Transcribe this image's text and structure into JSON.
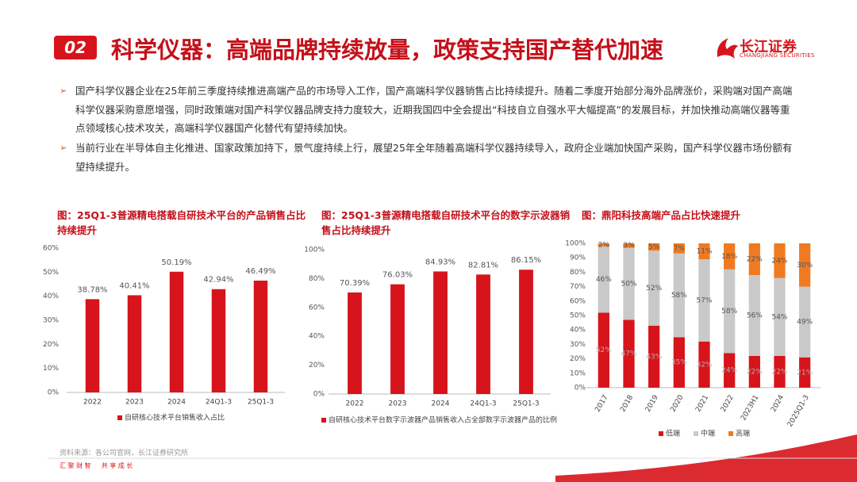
{
  "header": {
    "badge": "02",
    "title": "科学仪器：高端品牌持续放量，政策支持国产替代加速",
    "logo": "长江证券",
    "logo_en": "CHANGJIANG SECURITIES"
  },
  "bullets": [
    "国产科学仪器企业在25年前三季度持续推进高端产品的市场导入工作，国产高端科学仪器销售占比持续提升。随着二季度开始部分海外品牌涨价，采购端对国产高端科学仪器采购意愿增强，同时政策端对国产科学仪器品牌支持力度较大，近期我国四中全会提出“科技自立自强水平大幅提高”的发展目标，并加快推动高端仪器等重点领域核心技术攻关，高端科学仪器国产化替代有望持续加快。",
    "当前行业在半导体自主化推进、国家政策加持下，景气度持续上行，展望25年全年随着高端科学仪器持续导入，政府企业端加快国产采购，国产科学仪器市场份额有望持续提升。"
  ],
  "chart_data": [
    {
      "type": "bar",
      "title": "图：25Q1-3普源精电搭载自研技术平台的产品销售占比持续提升",
      "categories": [
        "2022",
        "2023",
        "2024",
        "24Q1-3",
        "25Q1-3"
      ],
      "series": [
        {
          "name": "自研核心技术平台销售收入占比",
          "color": "#d7141b",
          "values": [
            38.78,
            40.41,
            50.19,
            42.94,
            46.49
          ],
          "value_labels": [
            "38.78%",
            "40.41%",
            "50.19%",
            "42.94%",
            "46.49%"
          ]
        }
      ],
      "ylim": [
        0,
        60
      ],
      "yticks": [
        {
          "value": 0,
          "label": "0%"
        },
        {
          "value": 10,
          "label": "10%"
        },
        {
          "value": 20,
          "label": "20%"
        },
        {
          "value": 30,
          "label": "30%"
        },
        {
          "value": 40,
          "label": "40%"
        },
        {
          "value": 50,
          "label": "50%"
        },
        {
          "value": 60,
          "label": "60%"
        }
      ]
    },
    {
      "type": "bar",
      "title": "图：25Q1-3普源精电搭载自研技术平台的数字示波器销售占比持续提升",
      "categories": [
        "2022",
        "2023",
        "2024",
        "24Q1-3",
        "25Q1-3"
      ],
      "series": [
        {
          "name": "自研核心技术平台数字示波器产品销售收入占全部数字示波器产品的比例",
          "color": "#d7141b",
          "values": [
            70.39,
            76.03,
            84.93,
            82.81,
            86.15
          ],
          "value_labels": [
            "70.39%",
            "76.03%",
            "84.93%",
            "82.81%",
            "86.15%"
          ]
        }
      ],
      "ylim": [
        0,
        100
      ],
      "yticks": [
        {
          "value": 0,
          "label": "0%"
        },
        {
          "value": 20,
          "label": "20%"
        },
        {
          "value": 40,
          "label": "40%"
        },
        {
          "value": 60,
          "label": "60%"
        },
        {
          "value": 80,
          "label": "80%"
        },
        {
          "value": 100,
          "label": "100%"
        }
      ]
    },
    {
      "type": "stacked_bar",
      "title": "图：鼎阳科技高端产品占比快速提升",
      "categories": [
        "2017",
        "2018",
        "2019",
        "2020",
        "2021",
        "2022",
        "2023H1",
        "2024",
        "2025Q1-3"
      ],
      "series": [
        {
          "name": "低端",
          "color": "#d7141b",
          "values": [
            52,
            47,
            43,
            35,
            32,
            24,
            22,
            22,
            21
          ],
          "value_labels": [
            "52%",
            "47%",
            "43%",
            "35%",
            "32%",
            "24%",
            "22%",
            "22%",
            "21%"
          ]
        },
        {
          "name": "中端",
          "color": "#c9c9c9",
          "values": [
            46,
            50,
            52,
            58,
            57,
            58,
            56,
            54,
            49
          ],
          "value_labels": [
            "46%",
            "50%",
            "52%",
            "58%",
            "57%",
            "58%",
            "56%",
            "54%",
            "49%"
          ]
        },
        {
          "name": "高端",
          "color": "#f07a22",
          "values": [
            2,
            3,
            5,
            7,
            11,
            18,
            22,
            24,
            30
          ],
          "value_labels": [
            "2%",
            "3%",
            "5%",
            "7%",
            "11%",
            "18%",
            "22%",
            "24%",
            "30%"
          ]
        }
      ],
      "ylim": [
        0,
        100
      ],
      "yticks": [
        {
          "value": 0,
          "label": "0%"
        },
        {
          "value": 10,
          "label": "10%"
        },
        {
          "value": 20,
          "label": "20%"
        },
        {
          "value": 30,
          "label": "30%"
        },
        {
          "value": 40,
          "label": "40%"
        },
        {
          "value": 50,
          "label": "50%"
        },
        {
          "value": 60,
          "label": "60%"
        },
        {
          "value": 70,
          "label": "70%"
        },
        {
          "value": 80,
          "label": "80%"
        },
        {
          "value": 90,
          "label": "90%"
        },
        {
          "value": 100,
          "label": "100%"
        }
      ]
    }
  ],
  "footer": {
    "source": "资料来源：各公司官网，长江证券研究所",
    "slogan": "汇 聚 财 智 　 共 享 成 长"
  }
}
